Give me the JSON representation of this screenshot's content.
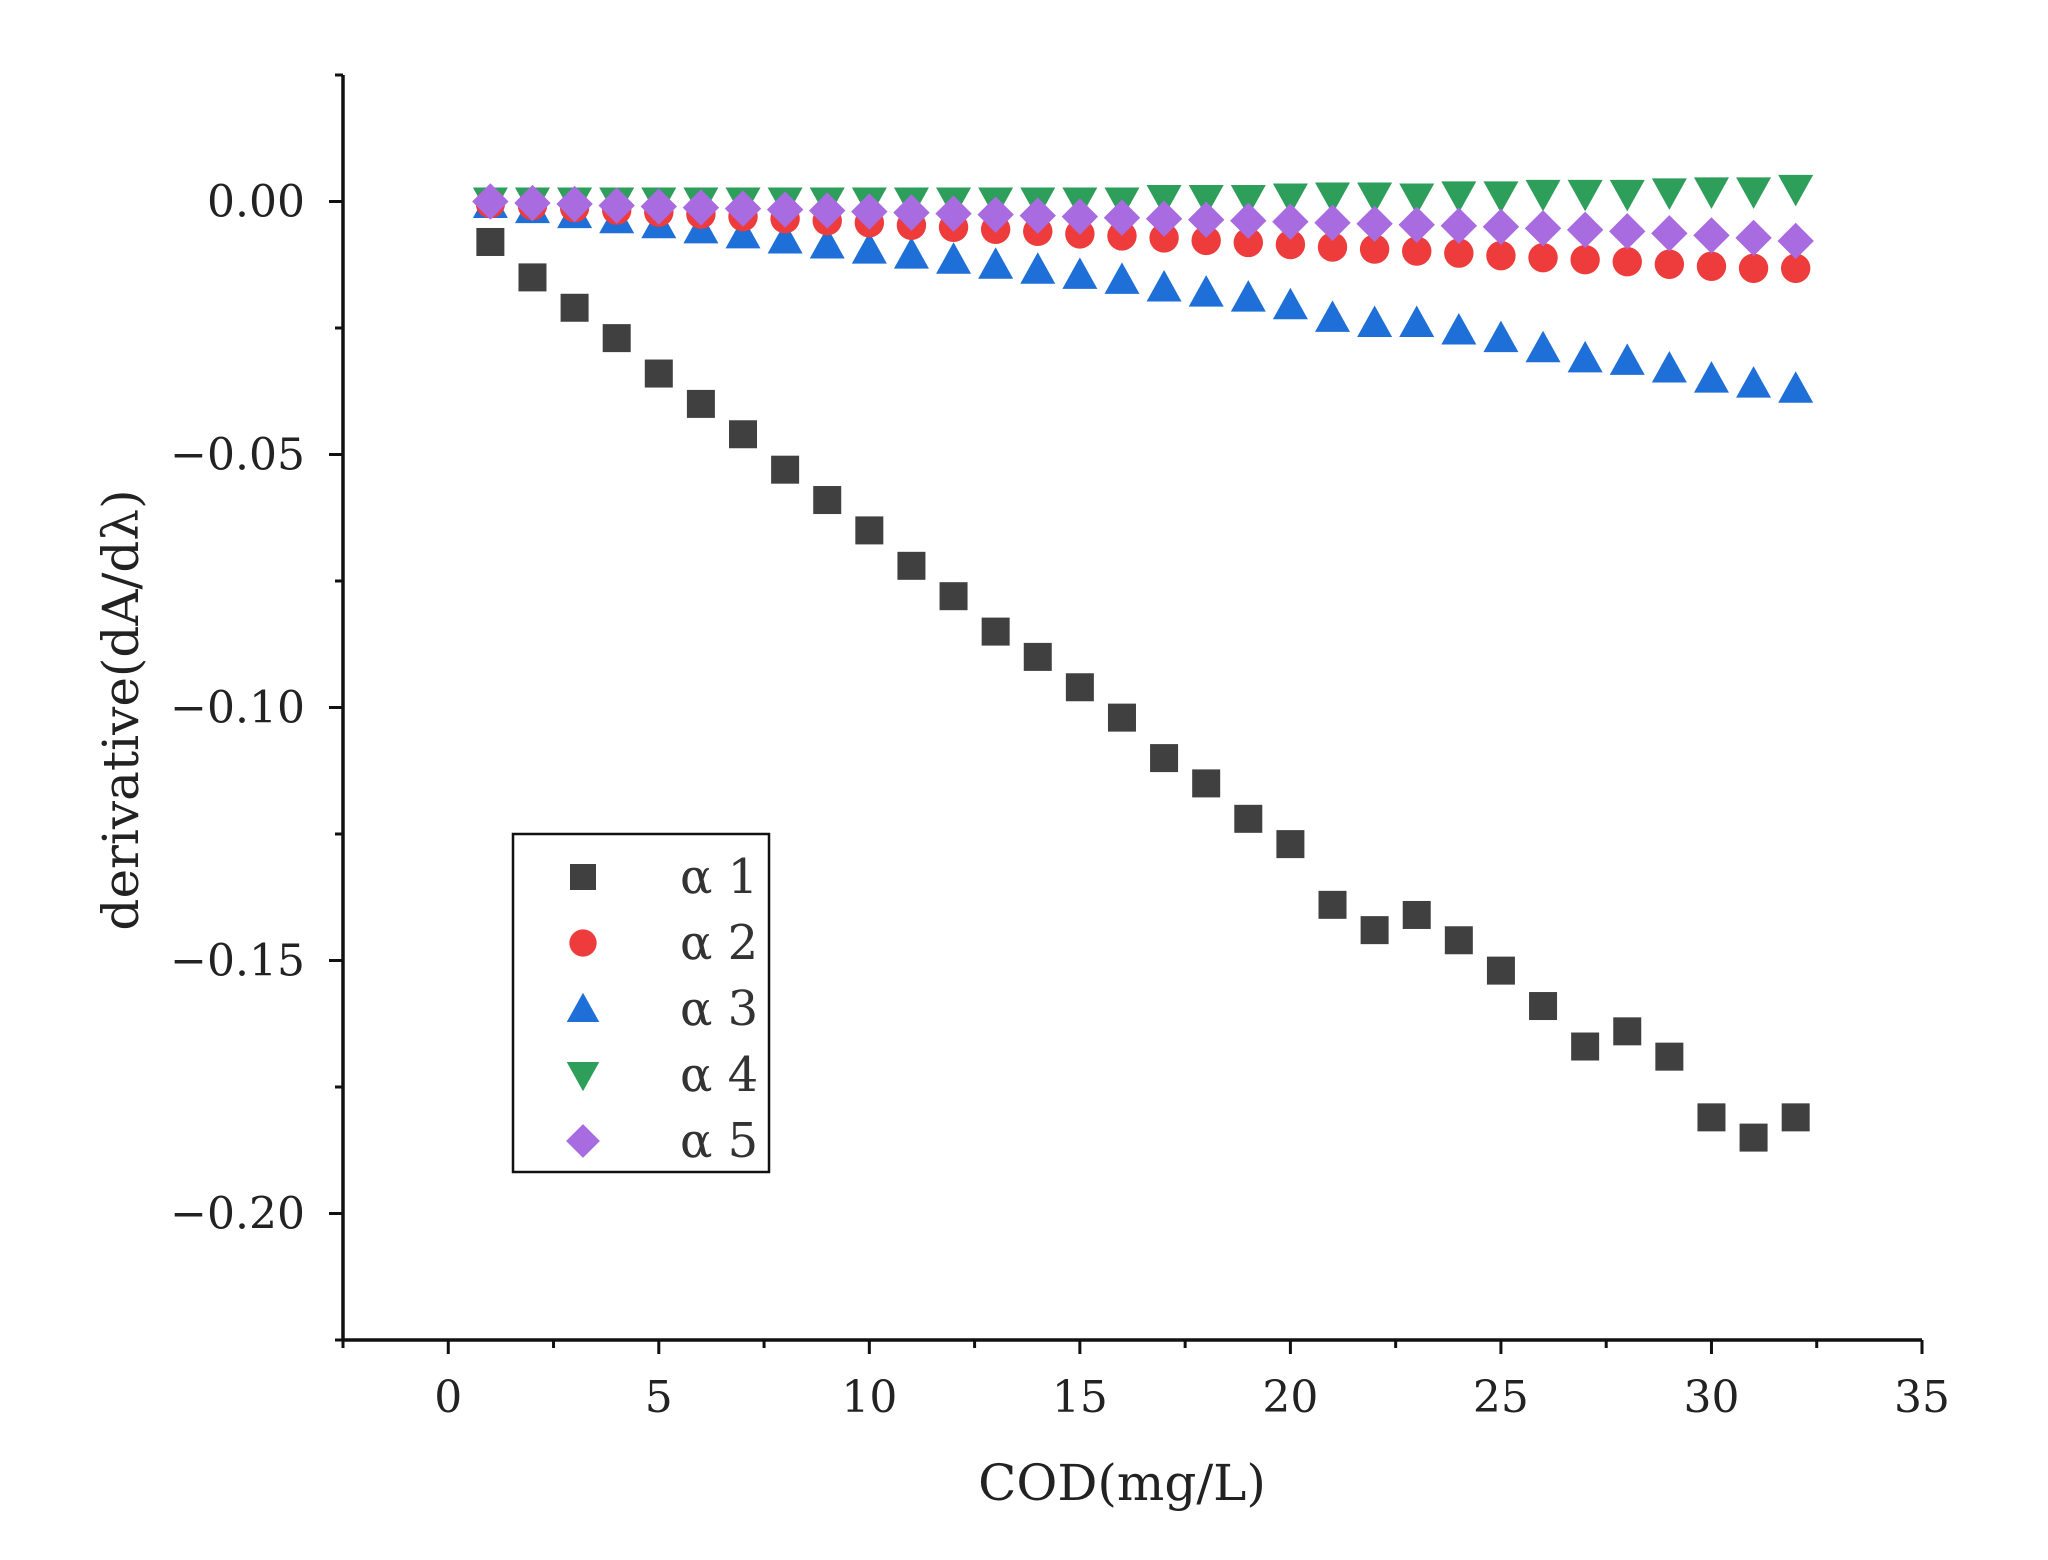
{
  "chart_data": {
    "type": "scatter",
    "title": "",
    "xlabel": "COD(mg/L)",
    "ylabel": "derivative(dA/dλ)",
    "xlim": [
      -2.5,
      35
    ],
    "ylim": [
      -0.225,
      0.025
    ],
    "x_ticks": [
      0,
      5,
      10,
      15,
      20,
      25,
      30,
      35
    ],
    "x_tick_labels": [
      "0",
      "5",
      "10",
      "15",
      "20",
      "25",
      "30",
      "35"
    ],
    "y_ticks": [
      0.0,
      -0.05,
      -0.1,
      -0.15,
      -0.2
    ],
    "y_tick_labels": [
      "0.00",
      "−0.05",
      "−0.10",
      "−0.15",
      "−0.20"
    ],
    "grid": false,
    "legend_position": "bottom-left",
    "x": [
      1,
      2,
      3,
      4,
      5,
      6,
      7,
      8,
      9,
      10,
      11,
      12,
      13,
      14,
      15,
      16,
      17,
      18,
      19,
      20,
      21,
      22,
      23,
      24,
      25,
      26,
      27,
      28,
      29,
      30,
      31,
      32
    ],
    "series": [
      {
        "name": "α 1",
        "marker": "square",
        "color": "#404040",
        "values": [
          -0.008,
          -0.015,
          -0.021,
          -0.027,
          -0.034,
          -0.04,
          -0.046,
          -0.053,
          -0.059,
          -0.065,
          -0.072,
          -0.078,
          -0.085,
          -0.09,
          -0.096,
          -0.102,
          -0.11,
          -0.115,
          -0.122,
          -0.127,
          -0.139,
          -0.144,
          -0.141,
          -0.146,
          -0.152,
          -0.159,
          -0.167,
          -0.164,
          -0.169,
          -0.181,
          -0.185,
          -0.181
        ]
      },
      {
        "name": "α 2",
        "marker": "circle",
        "color": "#ee3b3b",
        "values": [
          -0.0004,
          -0.0008,
          -0.0012,
          -0.0017,
          -0.0021,
          -0.0025,
          -0.003,
          -0.0034,
          -0.0038,
          -0.0042,
          -0.0047,
          -0.0051,
          -0.0055,
          -0.0059,
          -0.0064,
          -0.0068,
          -0.0072,
          -0.0077,
          -0.0081,
          -0.0085,
          -0.009,
          -0.0094,
          -0.0098,
          -0.0102,
          -0.0107,
          -0.0111,
          -0.0115,
          -0.0119,
          -0.0124,
          -0.0128,
          -0.0132,
          -0.0132
        ]
      },
      {
        "name": "α 3",
        "marker": "triangle-up",
        "color": "#1f6fd8",
        "values": [
          -0.0005,
          -0.0015,
          -0.0025,
          -0.0035,
          -0.0045,
          -0.0055,
          -0.0065,
          -0.0075,
          -0.0085,
          -0.0095,
          -0.0105,
          -0.0115,
          -0.0125,
          -0.0135,
          -0.0145,
          -0.0155,
          -0.017,
          -0.018,
          -0.019,
          -0.0205,
          -0.023,
          -0.024,
          -0.024,
          -0.0255,
          -0.027,
          -0.029,
          -0.031,
          -0.0315,
          -0.033,
          -0.035,
          -0.036,
          -0.037
        ]
      },
      {
        "name": "α 4",
        "marker": "triangle-down",
        "color": "#2e9e5b",
        "values": [
          0.0,
          0.0,
          0.0,
          0.0,
          0.0,
          0.0,
          0.0,
          0.0,
          0.0,
          0.0,
          0.0,
          0.0,
          0.0,
          0.0,
          0.0,
          0.0,
          0.0005,
          0.0005,
          0.0005,
          0.0008,
          0.001,
          0.001,
          0.0008,
          0.0012,
          0.0012,
          0.0015,
          0.0015,
          0.0015,
          0.0018,
          0.002,
          0.002,
          0.0025
        ]
      },
      {
        "name": "α 5",
        "marker": "diamond",
        "color": "#a86be0",
        "values": [
          0.0,
          -0.0003,
          -0.0005,
          -0.0008,
          -0.001,
          -0.0012,
          -0.0014,
          -0.0016,
          -0.0018,
          -0.002,
          -0.0022,
          -0.0024,
          -0.0026,
          -0.0028,
          -0.003,
          -0.0032,
          -0.0034,
          -0.0036,
          -0.0038,
          -0.004,
          -0.0042,
          -0.0044,
          -0.0046,
          -0.0048,
          -0.005,
          -0.0053,
          -0.0056,
          -0.0059,
          -0.0063,
          -0.0067,
          -0.0072,
          -0.0078
        ]
      }
    ]
  }
}
